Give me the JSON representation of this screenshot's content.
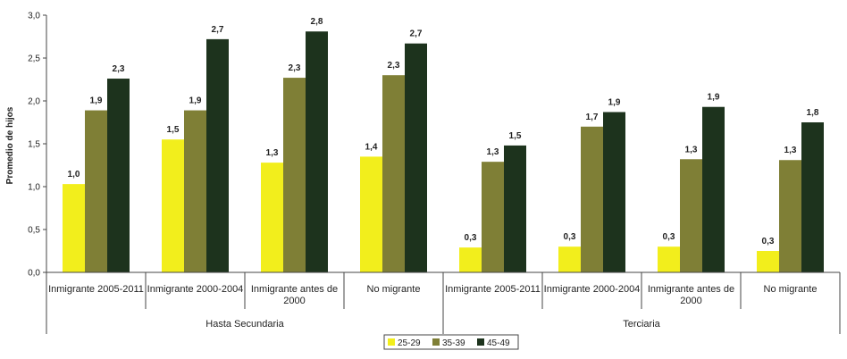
{
  "chart_data": {
    "type": "bar",
    "ylabel": "Promedio de hijos",
    "ylim": [
      0,
      3.0
    ],
    "yticks": [
      "0,0",
      "0,5",
      "1,0",
      "1,5",
      "2,0",
      "2,5",
      "3,0"
    ],
    "grid": false,
    "legend_position": "bottom",
    "categories": [
      [
        "Inmigrante 2005-2011"
      ],
      [
        "Inmigrante 2000-2004"
      ],
      [
        "Inmigrante antes de",
        "2000"
      ],
      [
        "No migrante"
      ],
      [
        "Inmigrante 2005-2011"
      ],
      [
        "Inmigrante 2000-2004"
      ],
      [
        "Inmigrante antes de",
        "2000"
      ],
      [
        "No migrante"
      ]
    ],
    "groups": [
      {
        "label": "Hasta Secundaria",
        "categories": 4
      },
      {
        "label": "Terciaria",
        "categories": 4
      }
    ],
    "series": [
      {
        "name": "25-29",
        "color": "#f2ee1c",
        "values": [
          1.03,
          1.55,
          1.28,
          1.35,
          0.29,
          0.3,
          0.3,
          0.25
        ],
        "labels": [
          "1,0",
          "1,5",
          "1,3",
          "1,4",
          "0,3",
          "0,3",
          "0,3",
          "0,3"
        ]
      },
      {
        "name": "35-39",
        "color": "#7f7f36",
        "values": [
          1.89,
          1.89,
          2.27,
          2.3,
          1.29,
          1.7,
          1.32,
          1.31
        ],
        "labels": [
          "1,9",
          "1,9",
          "2,3",
          "2,3",
          "1,3",
          "1,7",
          "1,3",
          "1,3"
        ]
      },
      {
        "name": "45-49",
        "color": "#1d331d",
        "values": [
          2.26,
          2.72,
          2.81,
          2.67,
          1.48,
          1.87,
          1.93,
          1.75
        ],
        "labels": [
          "2,3",
          "2,7",
          "2,8",
          "2,7",
          "1,5",
          "1,9",
          "1,9",
          "1,8"
        ]
      }
    ]
  }
}
